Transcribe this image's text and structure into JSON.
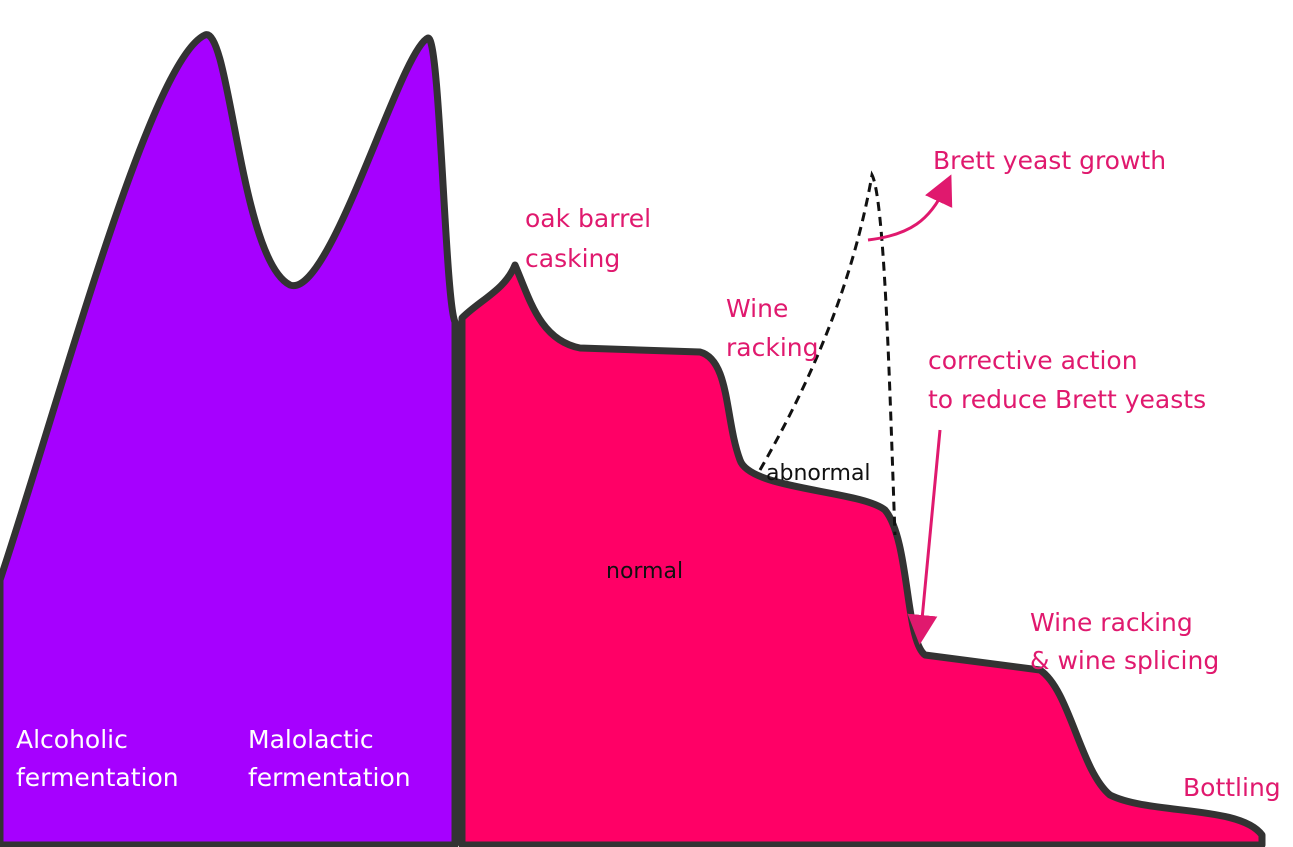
{
  "labels": {
    "alcoholic": [
      "Alcoholic",
      "fermentation"
    ],
    "malolactic": [
      "Malolactic",
      "fermentation"
    ],
    "oak": [
      "oak barrel",
      "casking"
    ],
    "racking": [
      "Wine",
      "racking"
    ],
    "abnormal": "abnormal",
    "normal": "normal",
    "brett": "Brett yeast growth",
    "corrective": [
      "corrective action",
      "to reduce Brett yeasts"
    ],
    "splicing": [
      "Wine racking",
      "& wine splicing"
    ],
    "bottling": "Bottling"
  }
}
